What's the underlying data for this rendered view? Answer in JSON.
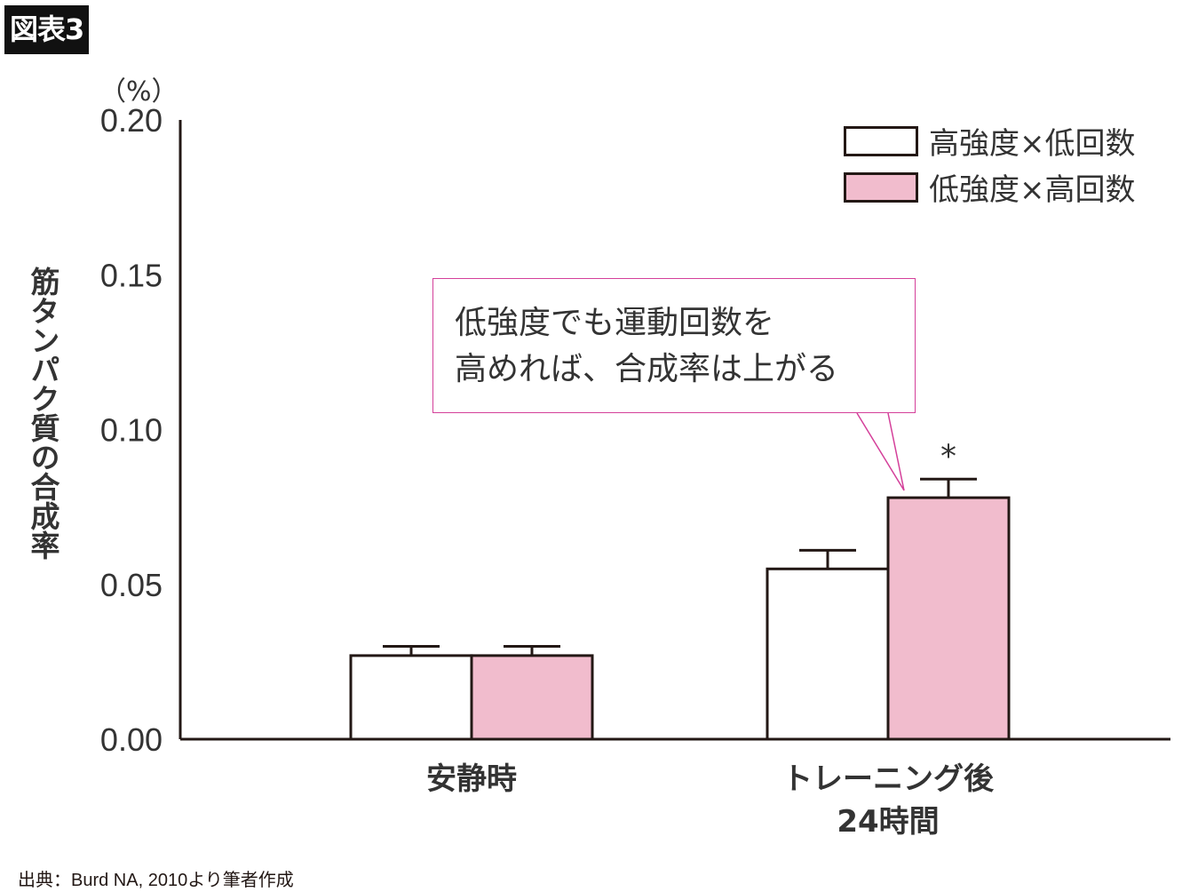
{
  "figure_label": "図表3",
  "source": "出典：Burd NA, 2010より筆者作成",
  "chart_data": {
    "type": "bar",
    "title": "",
    "ylabel": "筋タンパク質の合成率",
    "yunit": "（%）",
    "ylim": [
      0,
      0.2
    ],
    "yticks": [
      "0.00",
      "0.05",
      "0.10",
      "0.15",
      "0.20"
    ],
    "ytick_values": [
      0,
      0.05,
      0.1,
      0.15,
      0.2
    ],
    "categories": [
      "安静時",
      "トレーニング後\n24時間"
    ],
    "category_lines": [
      [
        "安静時"
      ],
      [
        "トレーニング後",
        "24時間"
      ]
    ],
    "series": [
      {
        "name": "高強度×低回数",
        "color": "#ffffff",
        "values": [
          0.027,
          0.055
        ],
        "errors": [
          0.003,
          0.006
        ]
      },
      {
        "name": "低強度×高回数",
        "color": "#f1bccd",
        "values": [
          0.027,
          0.078
        ],
        "errors": [
          0.003,
          0.006
        ]
      }
    ],
    "legend_position": "top-right",
    "significance_marker": "*",
    "significance_marker_target": {
      "category": 1,
      "series": 1
    },
    "annotation_lines": [
      "低強度でも運動回数を",
      "高めれば、合成率は上がる"
    ],
    "annotation_color": "#d4409a"
  }
}
